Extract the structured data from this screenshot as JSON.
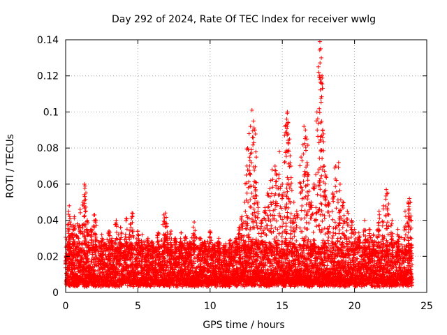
{
  "chart_data": {
    "type": "scatter",
    "title": "Day 292 of 2024, Rate Of TEC Index for receiver wwlg",
    "xlabel": "GPS time / hours",
    "ylabel": "ROTI / TECUs",
    "xlim": [
      0,
      25
    ],
    "ylim": [
      0,
      0.14
    ],
    "xticks": [
      0,
      5,
      10,
      15,
      20,
      25
    ],
    "yticks": [
      0,
      0.02,
      0.04,
      0.06,
      0.08,
      0.1,
      0.12,
      0.14
    ],
    "xtick_labels": [
      "0",
      "5",
      "10",
      "15",
      "20",
      "25"
    ],
    "ytick_labels": [
      "0",
      "0.02",
      "0.04",
      "0.06",
      "0.08",
      "0.1",
      "0.12",
      "0.14"
    ],
    "grid": true,
    "marker": "+",
    "color": "#ff0000",
    "series": [
      {
        "name": "ROTI",
        "points": [
          [
            0.1,
            0.018
          ],
          [
            0.2,
            0.045
          ],
          [
            0.25,
            0.048
          ],
          [
            0.3,
            0.03
          ],
          [
            0.5,
            0.035
          ],
          [
            0.6,
            0.042
          ],
          [
            0.8,
            0.038
          ],
          [
            1.0,
            0.046
          ],
          [
            1.2,
            0.05
          ],
          [
            1.3,
            0.06
          ],
          [
            1.35,
            0.059
          ],
          [
            1.5,
            0.04
          ],
          [
            1.8,
            0.035
          ],
          [
            2.0,
            0.043
          ],
          [
            2.1,
            0.04
          ],
          [
            2.5,
            0.032
          ],
          [
            3.0,
            0.034
          ],
          [
            3.2,
            0.03
          ],
          [
            3.5,
            0.04
          ],
          [
            3.8,
            0.036
          ],
          [
            4.2,
            0.041
          ],
          [
            4.5,
            0.038
          ],
          [
            4.6,
            0.044
          ],
          [
            5.0,
            0.034
          ],
          [
            5.3,
            0.032
          ],
          [
            5.7,
            0.03
          ],
          [
            6.0,
            0.028
          ],
          [
            6.4,
            0.033
          ],
          [
            6.8,
            0.043
          ],
          [
            6.9,
            0.044
          ],
          [
            7.0,
            0.038
          ],
          [
            7.3,
            0.034
          ],
          [
            7.6,
            0.03
          ],
          [
            8.0,
            0.033
          ],
          [
            8.3,
            0.031
          ],
          [
            8.6,
            0.028
          ],
          [
            8.9,
            0.039
          ],
          [
            9.3,
            0.03
          ],
          [
            9.6,
            0.028
          ],
          [
            10.0,
            0.034
          ],
          [
            10.3,
            0.026
          ],
          [
            10.6,
            0.03
          ],
          [
            11.0,
            0.025
          ],
          [
            11.4,
            0.029
          ],
          [
            11.8,
            0.03
          ],
          [
            12.0,
            0.036
          ],
          [
            12.2,
            0.042
          ],
          [
            12.4,
            0.05
          ],
          [
            12.5,
            0.065
          ],
          [
            12.6,
            0.08
          ],
          [
            12.7,
            0.088
          ],
          [
            12.8,
            0.092
          ],
          [
            12.9,
            0.101
          ],
          [
            13.0,
            0.095
          ],
          [
            13.1,
            0.09
          ],
          [
            13.2,
            0.075
          ],
          [
            13.3,
            0.05
          ],
          [
            13.6,
            0.04
          ],
          [
            13.8,
            0.047
          ],
          [
            14.0,
            0.055
          ],
          [
            14.2,
            0.062
          ],
          [
            14.3,
            0.068
          ],
          [
            14.5,
            0.07
          ],
          [
            14.6,
            0.065
          ],
          [
            14.8,
            0.078
          ],
          [
            15.0,
            0.06
          ],
          [
            15.2,
            0.092
          ],
          [
            15.3,
            0.096
          ],
          [
            15.35,
            0.1
          ],
          [
            15.4,
            0.094
          ],
          [
            15.5,
            0.085
          ],
          [
            15.6,
            0.07
          ],
          [
            15.8,
            0.05
          ],
          [
            16.0,
            0.045
          ],
          [
            16.3,
            0.075
          ],
          [
            16.5,
            0.092
          ],
          [
            16.6,
            0.09
          ],
          [
            16.7,
            0.085
          ],
          [
            16.8,
            0.065
          ],
          [
            17.0,
            0.05
          ],
          [
            17.2,
            0.06
          ],
          [
            17.4,
            0.1
          ],
          [
            17.5,
            0.125
          ],
          [
            17.6,
            0.139
          ],
          [
            17.65,
            0.135
          ],
          [
            17.7,
            0.13
          ],
          [
            17.75,
            0.12
          ],
          [
            17.8,
            0.09
          ],
          [
            17.9,
            0.07
          ],
          [
            18.0,
            0.065
          ],
          [
            18.2,
            0.05
          ],
          [
            18.5,
            0.055
          ],
          [
            18.7,
            0.07
          ],
          [
            18.9,
            0.072
          ],
          [
            19.0,
            0.06
          ],
          [
            19.2,
            0.05
          ],
          [
            19.5,
            0.045
          ],
          [
            19.8,
            0.04
          ],
          [
            20.0,
            0.035
          ],
          [
            20.3,
            0.033
          ],
          [
            20.7,
            0.04
          ],
          [
            21.0,
            0.035
          ],
          [
            21.3,
            0.032
          ],
          [
            21.7,
            0.045
          ],
          [
            22.0,
            0.048
          ],
          [
            22.2,
            0.057
          ],
          [
            22.3,
            0.055
          ],
          [
            22.6,
            0.04
          ],
          [
            23.0,
            0.035
          ],
          [
            23.5,
            0.045
          ],
          [
            23.7,
            0.05
          ],
          [
            23.8,
            0.052
          ],
          [
            23.9,
            0.04
          ]
        ]
      }
    ],
    "band": {
      "description": "dense background cloud of points between baseline values",
      "base_min": 0.003,
      "base_max": 0.025
    }
  }
}
